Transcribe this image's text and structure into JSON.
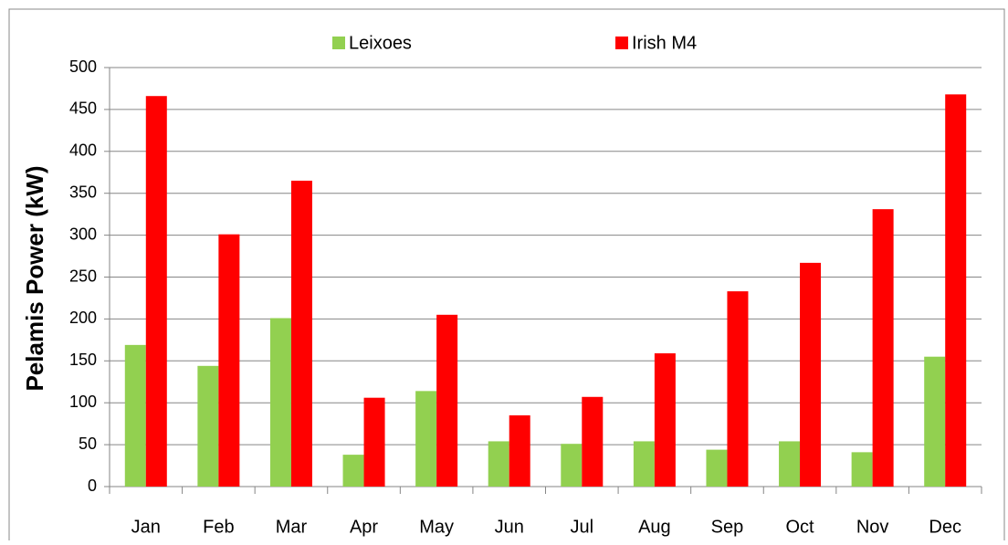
{
  "chart_data": {
    "type": "bar",
    "y_label": "Pelamis Power (kW)",
    "categories": [
      "Jan",
      "Feb",
      "Mar",
      "Apr",
      "May",
      "Jun",
      "Jul",
      "Aug",
      "Sep",
      "Oct",
      "Nov",
      "Dec"
    ],
    "series": [
      {
        "name": "Leixoes",
        "color": "#92d050",
        "values": [
          169,
          144,
          201,
          38,
          114,
          54,
          51,
          54,
          44,
          54,
          41,
          155
        ]
      },
      {
        "name": "Irish M4",
        "color": "#ff0000",
        "values": [
          466,
          301,
          365,
          106,
          205,
          85,
          107,
          159,
          233,
          267,
          331,
          468
        ]
      }
    ],
    "ylim": [
      0,
      500
    ],
    "yticks": [
      0,
      50,
      100,
      150,
      200,
      250,
      300,
      350,
      400,
      450,
      500
    ],
    "grid": true,
    "legend": "top"
  }
}
